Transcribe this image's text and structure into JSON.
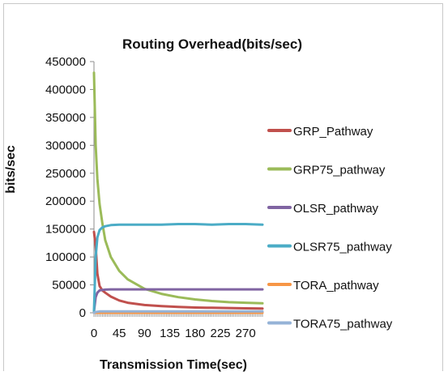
{
  "chart_data": {
    "type": "line",
    "title": "Routing Overhead(bits/sec)",
    "xlabel": "Transmission Time(sec)",
    "ylabel": "bits/sec",
    "x_ticks": [
      0,
      45,
      90,
      135,
      180,
      225,
      270
    ],
    "y_ticks": [
      0,
      50000,
      100000,
      150000,
      200000,
      250000,
      300000,
      350000,
      400000,
      450000
    ],
    "y_tick_labels": [
      "0",
      "50000",
      "100000",
      "150000",
      "200000",
      "250000",
      "300000",
      "350000",
      "400000",
      "450000"
    ],
    "xlim": [
      0,
      300
    ],
    "ylim": [
      0,
      450000
    ],
    "legend_position": "right",
    "series": [
      {
        "name": "GRP_Pathway",
        "color": "#c0504d",
        "x": [
          0,
          3,
          6,
          10,
          15,
          20,
          30,
          45,
          60,
          90,
          120,
          150,
          180,
          210,
          240,
          270,
          300
        ],
        "y": [
          145000,
          120000,
          70000,
          48000,
          40000,
          36000,
          29000,
          22000,
          18000,
          14000,
          12000,
          10500,
          9500,
          9000,
          8500,
          8000,
          7500
        ]
      },
      {
        "name": "GRP75_pathway",
        "color": "#9bbb59",
        "x": [
          0,
          3,
          6,
          10,
          15,
          20,
          30,
          45,
          60,
          90,
          120,
          150,
          180,
          210,
          240,
          270,
          300
        ],
        "y": [
          430000,
          300000,
          240000,
          195000,
          160000,
          130000,
          100000,
          75000,
          60000,
          43000,
          34000,
          28000,
          24000,
          21000,
          19000,
          18000,
          17000
        ]
      },
      {
        "name": "OLSR_pathway",
        "color": "#8064a2",
        "x": [
          0,
          3,
          6,
          10,
          15,
          20,
          30,
          45,
          60,
          90,
          120,
          150,
          180,
          210,
          240,
          270,
          300
        ],
        "y": [
          2000,
          28000,
          36000,
          40000,
          41000,
          41500,
          42000,
          42000,
          42000,
          42000,
          42000,
          42000,
          42000,
          42000,
          42000,
          42000,
          42000
        ]
      },
      {
        "name": "OLSR75_pathway",
        "color": "#4bacc6",
        "x": [
          0,
          3,
          6,
          10,
          15,
          20,
          30,
          45,
          60,
          90,
          120,
          150,
          180,
          210,
          240,
          270,
          300
        ],
        "y": [
          3000,
          100000,
          135000,
          148000,
          153000,
          155000,
          157000,
          158000,
          158000,
          158000,
          158000,
          159000,
          159000,
          158000,
          159000,
          159000,
          158000
        ]
      },
      {
        "name": "TORA_pathway",
        "color": "#f79646",
        "x": [
          0,
          30,
          60,
          90,
          120,
          150,
          180,
          210,
          240,
          270,
          300
        ],
        "y": [
          0,
          0,
          0,
          0,
          0,
          0,
          0,
          0,
          0,
          0,
          0
        ]
      },
      {
        "name": "TORA75_pathway",
        "color": "#95b3d7",
        "x": [
          0,
          3,
          10,
          20,
          30,
          60,
          90,
          120,
          150,
          180,
          210,
          240,
          270,
          300
        ],
        "y": [
          0,
          1500,
          2500,
          2500,
          2500,
          2500,
          2500,
          2500,
          2500,
          2500,
          2500,
          2500,
          2500,
          2500
        ]
      }
    ]
  }
}
